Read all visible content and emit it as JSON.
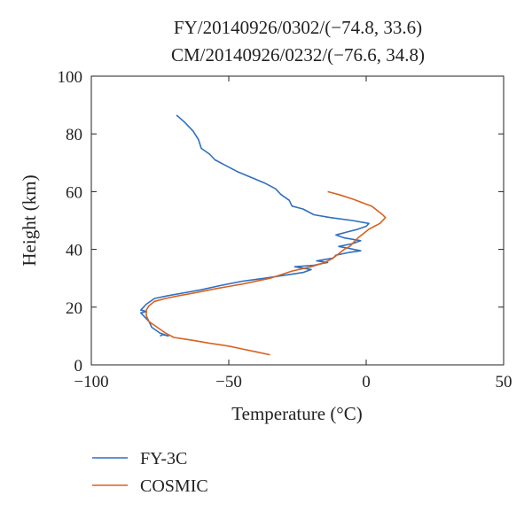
{
  "chart_data": {
    "type": "line",
    "title": [
      "FY/20140926/0302/(−74.8, 33.6)",
      "CM/20140926/0232/(−76.6, 34.8)"
    ],
    "xlabel": "Temperature (°C)",
    "ylabel": "Height (km)",
    "xlim": [
      -100,
      50
    ],
    "ylim": [
      0,
      100
    ],
    "xticks": [
      -100,
      -50,
      0,
      50
    ],
    "xtick_labels": [
      "−100",
      "−50",
      "0",
      "50"
    ],
    "yticks": [
      0,
      20,
      40,
      60,
      80,
      100
    ],
    "ytick_labels": [
      "0",
      "20",
      "40",
      "60",
      "80",
      "100"
    ],
    "grid": false,
    "legend_position": "bottom-left, below plot",
    "series": [
      {
        "name": "FY-3C",
        "color": "#2f6fc0",
        "points": [
          [
            -69,
            86.5
          ],
          [
            -66,
            84
          ],
          [
            -63,
            81
          ],
          [
            -61,
            78
          ],
          [
            -60,
            75
          ],
          [
            -57,
            73
          ],
          [
            -55,
            71
          ],
          [
            -51,
            69
          ],
          [
            -47,
            67
          ],
          [
            -42,
            65
          ],
          [
            -37,
            63
          ],
          [
            -33,
            61
          ],
          [
            -31,
            59
          ],
          [
            -28,
            57
          ],
          [
            -27,
            55
          ],
          [
            -23,
            54
          ],
          [
            -19,
            52
          ],
          [
            -13,
            51
          ],
          [
            -5,
            50
          ],
          [
            1,
            49
          ],
          [
            0,
            48
          ],
          [
            -3,
            47
          ],
          [
            -7,
            46
          ],
          [
            -11,
            45
          ],
          [
            -8,
            44
          ],
          [
            -2,
            43
          ],
          [
            -5,
            42
          ],
          [
            -10,
            41
          ],
          [
            -7,
            40.5
          ],
          [
            -2,
            39.5
          ],
          [
            -6,
            39
          ],
          [
            -11,
            38
          ],
          [
            -12,
            37
          ],
          [
            -18,
            36
          ],
          [
            -14,
            35.5
          ],
          [
            -19,
            34.5
          ],
          [
            -26,
            34
          ],
          [
            -20,
            33
          ],
          [
            -23,
            32
          ],
          [
            -30,
            31
          ],
          [
            -37,
            30
          ],
          [
            -45,
            29
          ],
          [
            -53,
            27.5
          ],
          [
            -60,
            26
          ],
          [
            -66,
            25
          ],
          [
            -72,
            24
          ],
          [
            -77,
            23
          ],
          [
            -80,
            21
          ],
          [
            -81,
            20
          ],
          [
            -82,
            19
          ],
          [
            -80,
            18.5
          ],
          [
            -82,
            18
          ],
          [
            -81,
            17
          ],
          [
            -79,
            15
          ],
          [
            -78,
            13
          ],
          [
            -75,
            11
          ],
          [
            -72,
            10
          ],
          [
            -74,
            10.5
          ],
          [
            -75,
            10
          ]
        ]
      },
      {
        "name": "COSMIC",
        "color": "#d8611f",
        "points": [
          [
            -14,
            60
          ],
          [
            -10,
            59
          ],
          [
            -5,
            57.5
          ],
          [
            -1,
            56
          ],
          [
            2,
            55
          ],
          [
            4,
            53.5
          ],
          [
            6,
            52
          ],
          [
            7,
            51
          ],
          [
            6,
            50
          ],
          [
            5,
            49
          ],
          [
            3,
            48
          ],
          [
            1,
            47
          ],
          [
            -1,
            45.5
          ],
          [
            -3,
            44
          ],
          [
            -4,
            43
          ],
          [
            -6,
            41
          ],
          [
            -8,
            40
          ],
          [
            -10,
            38.5
          ],
          [
            -12,
            37
          ],
          [
            -15,
            35.5
          ],
          [
            -20,
            34
          ],
          [
            -27,
            32.5
          ],
          [
            -35,
            30
          ],
          [
            -45,
            28
          ],
          [
            -54,
            26.5
          ],
          [
            -62,
            25
          ],
          [
            -68,
            24
          ],
          [
            -73,
            23
          ],
          [
            -77,
            22
          ],
          [
            -79,
            20.5
          ],
          [
            -80,
            19
          ],
          [
            -80,
            17
          ],
          [
            -79,
            15
          ],
          [
            -76,
            13
          ],
          [
            -73,
            11
          ],
          [
            -70,
            9.5
          ],
          [
            -63,
            8.5
          ],
          [
            -57,
            7.5
          ],
          [
            -50,
            6.5
          ],
          [
            -45,
            5.5
          ],
          [
            -40,
            4.5
          ],
          [
            -35,
            3.5
          ]
        ]
      }
    ]
  }
}
